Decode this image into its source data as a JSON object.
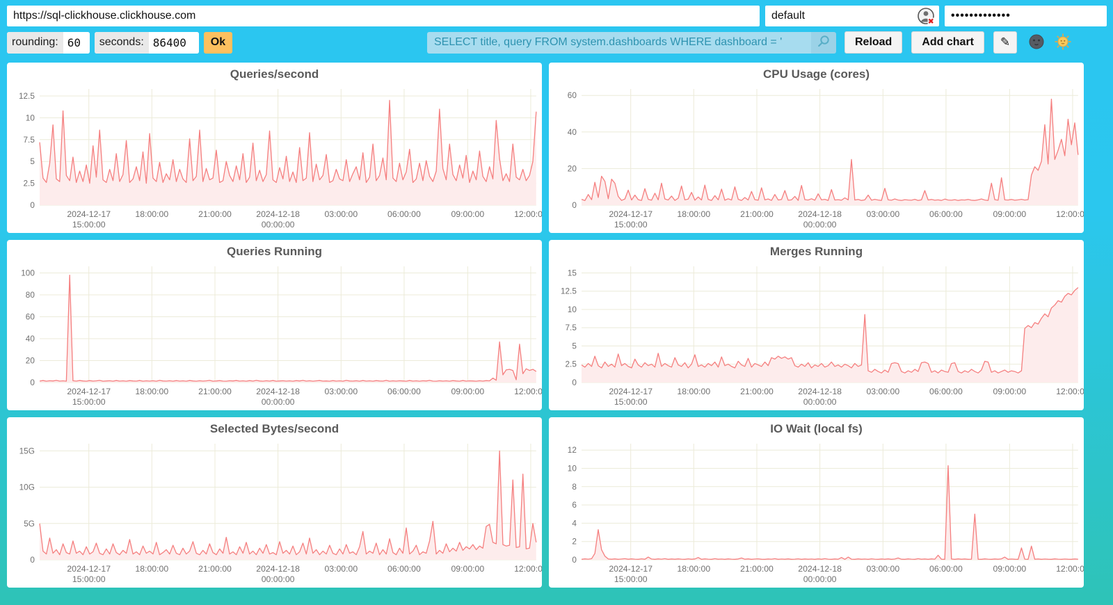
{
  "browser": {
    "url": "https://sql-clickhouse.clickhouse.com",
    "user": "default",
    "password_mask": "•••••••••••••"
  },
  "toolbar": {
    "rounding_label": "rounding:",
    "rounding_value": "60",
    "seconds_label": "seconds:",
    "seconds_value": "86400",
    "ok_label": "Ok",
    "query": "SELECT title, query FROM system.dashboards WHERE dashboard = '",
    "reload_label": "Reload",
    "add_chart_label": "Add chart",
    "edit_icon": "✎"
  },
  "colors": {
    "line": "#f58080",
    "area": "#fdecec",
    "grid": "#ecebd9",
    "axis_text": "#707070",
    "accent_cyan": "#2bc6f1",
    "accent_teal": "#2ec3b7",
    "ok_orange": "#fdc05f"
  },
  "chart_data": {
    "type": "line",
    "x_axis": {
      "ticks": [
        {
          "f": 0.099,
          "l1": "2024-12-17",
          "l2": "15:00:00"
        },
        {
          "f": 0.226,
          "l1": "18:00:00",
          "l2": ""
        },
        {
          "f": 0.353,
          "l1": "21:00:00",
          "l2": ""
        },
        {
          "f": 0.48,
          "l1": "2024-12-18",
          "l2": "00:00:00"
        },
        {
          "f": 0.607,
          "l1": "03:00:00",
          "l2": ""
        },
        {
          "f": 0.734,
          "l1": "06:00:00",
          "l2": ""
        },
        {
          "f": 0.862,
          "l1": "09:00:00",
          "l2": ""
        },
        {
          "f": 0.989,
          "l1": "12:00:00",
          "l2": ""
        }
      ]
    },
    "charts": [
      {
        "title": "Queries/second",
        "y_max": 13.3,
        "y_ticks": [
          {
            "v": 0,
            "label": "0"
          },
          {
            "v": 2.5,
            "label": "2.5"
          },
          {
            "v": 5,
            "label": "5"
          },
          {
            "v": 7.5,
            "label": "7.5"
          },
          {
            "v": 10,
            "label": "10"
          },
          {
            "v": 12.5,
            "label": "12.5"
          }
        ],
        "values": [
          7.2,
          3.1,
          2.6,
          4.8,
          9.2,
          3.0,
          2.7,
          10.8,
          3.4,
          2.8,
          5.5,
          2.6,
          3.9,
          2.7,
          4.6,
          2.5,
          6.8,
          3.2,
          8.6,
          2.9,
          2.6,
          4.1,
          2.8,
          5.9,
          2.7,
          3.5,
          7.4,
          2.6,
          3.0,
          4.4,
          2.8,
          6.1,
          2.5,
          8.2,
          3.1,
          2.7,
          4.9,
          2.6,
          3.6,
          2.9,
          5.2,
          2.7,
          4.1,
          3.0,
          2.6,
          7.6,
          2.8,
          3.3,
          8.6,
          2.7,
          4.2,
          2.9,
          3.1,
          6.3,
          2.6,
          2.8,
          5.0,
          3.4,
          2.7,
          4.5,
          2.9,
          5.9,
          2.6,
          3.2,
          7.1,
          2.8,
          4.0,
          2.7,
          3.5,
          8.5,
          2.9,
          2.6,
          4.3,
          3.0,
          5.6,
          2.7,
          3.8,
          2.6,
          6.6,
          2.8,
          3.1,
          8.3,
          2.7,
          4.7,
          2.9,
          3.4,
          5.8,
          2.6,
          2.8,
          4.1,
          3.0,
          2.8,
          5.2,
          2.7,
          3.6,
          4.4,
          2.9,
          6.0,
          2.6,
          3.2,
          7.0,
          2.8,
          3.4,
          5.4,
          2.9,
          12.0,
          3.1,
          2.7,
          4.8,
          2.9,
          3.8,
          6.4,
          2.6,
          3.0,
          4.8,
          2.8,
          5.1,
          3.3,
          2.7,
          3.9,
          11.0,
          4.2,
          2.9,
          7.0,
          3.5,
          2.8,
          4.6,
          3.1,
          5.7,
          2.6,
          3.9,
          2.9,
          6.2,
          3.3,
          2.7,
          4.4,
          3.0,
          9.7,
          5.3,
          2.8,
          3.6,
          2.7,
          7.0,
          3.2,
          2.9,
          4.1,
          2.8,
          3.4,
          5.0,
          10.7
        ]
      },
      {
        "title": "CPU Usage (cores)",
        "y_max": 63.5,
        "y_ticks": [
          {
            "v": 0,
            "label": "0"
          },
          {
            "v": 20,
            "label": "20"
          },
          {
            "v": 40,
            "label": "40"
          },
          {
            "v": 60,
            "label": "60"
          }
        ],
        "values": [
          3.2,
          2.5,
          5.8,
          3.0,
          12.5,
          4.2,
          15.8,
          13.0,
          3.5,
          14.2,
          12.0,
          4.8,
          2.6,
          3.4,
          8.2,
          2.8,
          5.5,
          3.0,
          2.6,
          9.0,
          3.2,
          2.7,
          6.5,
          2.9,
          12.0,
          3.4,
          2.8,
          5.0,
          2.6,
          3.8,
          10.5,
          2.9,
          3.3,
          7.0,
          2.7,
          4.5,
          2.8,
          11.0,
          3.1,
          2.6,
          5.2,
          2.9,
          8.8,
          2.7,
          3.5,
          2.8,
          10.0,
          3.2,
          2.6,
          4.2,
          2.8,
          7.5,
          3.0,
          2.7,
          9.5,
          2.9,
          3.4,
          2.6,
          5.8,
          2.8,
          3.1,
          8.0,
          2.7,
          2.9,
          4.8,
          2.6,
          10.8,
          3.0,
          2.8,
          3.5,
          2.7,
          6.2,
          2.9,
          3.2,
          2.6,
          8.5,
          2.8,
          3.0,
          2.7,
          4.0,
          2.9,
          25.0,
          2.8,
          3.1,
          2.6,
          2.9,
          5.5,
          2.7,
          3.2,
          2.8,
          2.6,
          9.2,
          2.9,
          2.7,
          3.4,
          2.8,
          2.6,
          3.0,
          2.8,
          2.7,
          3.2,
          2.6,
          2.9,
          8.0,
          2.8,
          3.1,
          2.7,
          2.9,
          2.6,
          3.3,
          2.8,
          2.7,
          3.0,
          2.6,
          2.9,
          2.8,
          3.1,
          2.7,
          2.6,
          2.9,
          3.4,
          2.8,
          2.6,
          12.0,
          3.0,
          2.7,
          15.0,
          2.9,
          2.8,
          3.1,
          2.7,
          2.9,
          3.2,
          2.8,
          3.0,
          16.5,
          21.0,
          19.0,
          24.0,
          44.0,
          22.5,
          58.0,
          25.0,
          30.0,
          36.0,
          27.0,
          47.0,
          33.0,
          45.0,
          27.5
        ]
      },
      {
        "title": "Queries Running",
        "y_max": 106,
        "y_ticks": [
          {
            "v": 0,
            "label": "0"
          },
          {
            "v": 20,
            "label": "20"
          },
          {
            "v": 40,
            "label": "40"
          },
          {
            "v": 60,
            "label": "60"
          },
          {
            "v": 80,
            "label": "80"
          },
          {
            "v": 100,
            "label": "100"
          }
        ],
        "values": [
          1.3,
          1.8,
          1.2,
          1.6,
          1.4,
          1.9,
          1.3,
          1.5,
          1.2,
          98,
          1.6,
          1.3,
          1.8,
          1.4,
          1.2,
          1.7,
          1.3,
          1.5,
          1.9,
          1.2,
          1.4,
          1.6,
          1.2,
          1.8,
          1.3,
          1.5,
          1.2,
          1.7,
          1.4,
          1.3,
          1.8,
          1.2,
          1.5,
          1.3,
          1.6,
          1.2,
          1.9,
          1.4,
          1.3,
          1.6,
          1.2,
          1.7,
          1.3,
          1.5,
          1.2,
          1.8,
          1.4,
          1.2,
          1.6,
          1.3,
          1.5,
          1.9,
          1.2,
          1.4,
          1.7,
          1.3,
          1.2,
          1.6,
          1.4,
          1.8,
          1.3,
          1.5,
          1.2,
          1.7,
          1.3,
          1.9,
          1.4,
          1.2,
          1.6,
          1.3,
          1.8,
          1.2,
          1.4,
          1.6,
          1.3,
          1.5,
          1.2,
          1.7,
          1.4,
          1.9,
          1.3,
          1.6,
          1.2,
          1.5,
          1.8,
          1.3,
          1.4,
          1.2,
          1.7,
          1.3,
          1.5,
          1.2,
          1.9,
          1.4,
          1.3,
          1.6,
          1.2,
          1.8,
          1.3,
          1.5,
          1.2,
          1.7,
          1.4,
          1.3,
          1.9,
          1.2,
          1.5,
          1.3,
          1.6,
          1.4,
          1.2,
          1.8,
          1.3,
          1.5,
          1.2,
          1.6,
          1.4,
          1.9,
          1.3,
          1.2,
          1.6,
          1.3,
          1.5,
          1.2,
          1.7,
          1.4,
          1.2,
          1.8,
          1.3,
          1.5,
          1.4,
          1.2,
          1.6,
          1.3,
          1.7,
          1.5,
          4.0,
          2.0,
          37,
          7.0,
          11.5,
          12.0,
          11.0,
          2.5,
          35,
          8.0,
          12.5,
          11.0,
          12.0,
          10.0
        ]
      },
      {
        "title": "Merges Running",
        "y_max": 15.9,
        "y_ticks": [
          {
            "v": 0,
            "label": "0"
          },
          {
            "v": 2.5,
            "label": "2.5"
          },
          {
            "v": 5,
            "label": "5"
          },
          {
            "v": 7.5,
            "label": "7.5"
          },
          {
            "v": 10,
            "label": "10"
          },
          {
            "v": 12.5,
            "label": "12.5"
          },
          {
            "v": 15,
            "label": "15"
          }
        ],
        "values": [
          2.4,
          2.1,
          2.6,
          2.2,
          3.6,
          2.3,
          2.0,
          2.8,
          2.2,
          2.5,
          2.1,
          3.9,
          2.3,
          2.6,
          2.2,
          2.0,
          3.2,
          2.4,
          2.1,
          2.7,
          2.3,
          2.5,
          2.1,
          4.0,
          2.2,
          2.6,
          2.3,
          2.1,
          3.4,
          2.4,
          2.2,
          2.7,
          2.0,
          2.5,
          3.8,
          2.2,
          2.4,
          2.1,
          2.6,
          2.3,
          2.8,
          2.1,
          3.5,
          2.3,
          2.5,
          2.2,
          2.0,
          2.9,
          2.4,
          2.2,
          3.3,
          2.1,
          2.6,
          2.4,
          2.2,
          2.8,
          2.3,
          3.4,
          3.2,
          3.6,
          3.3,
          3.5,
          3.2,
          3.4,
          2.3,
          2.1,
          2.5,
          2.2,
          2.7,
          2.0,
          2.4,
          2.2,
          2.6,
          2.1,
          2.3,
          2.8,
          2.2,
          2.4,
          2.1,
          2.5,
          2.3,
          2.0,
          2.6,
          2.2,
          2.4,
          9.3,
          1.6,
          1.4,
          1.8,
          1.5,
          1.3,
          1.7,
          1.4,
          2.6,
          2.7,
          2.6,
          1.5,
          1.3,
          1.6,
          1.4,
          1.8,
          1.5,
          2.7,
          2.8,
          2.6,
          1.4,
          1.6,
          1.3,
          1.7,
          1.5,
          1.4,
          2.6,
          2.7,
          1.5,
          1.3,
          1.6,
          1.4,
          1.8,
          1.5,
          1.3,
          1.7,
          2.9,
          2.8,
          1.4,
          1.6,
          1.3,
          1.5,
          1.7,
          1.4,
          1.6,
          1.5,
          1.3,
          1.6,
          7.4,
          7.8,
          7.5,
          8.2,
          8.0,
          8.8,
          9.4,
          9.0,
          10.2,
          10.6,
          11.2,
          11.0,
          11.8,
          12.2,
          12.0,
          12.6,
          13.0
        ]
      },
      {
        "title": "Selected Bytes/second",
        "y_max": 16,
        "y_unit": "G",
        "y_ticks": [
          {
            "v": 0,
            "label": "0"
          },
          {
            "v": 5,
            "label": "5G"
          },
          {
            "v": 10,
            "label": "10G"
          },
          {
            "v": 15,
            "label": "15G"
          }
        ],
        "values": [
          5.0,
          1.2,
          0.8,
          3.0,
          0.9,
          1.4,
          0.7,
          2.2,
          1.0,
          0.8,
          2.6,
          0.9,
          1.2,
          0.7,
          1.8,
          0.8,
          1.1,
          2.3,
          0.9,
          0.7,
          1.5,
          0.8,
          2.2,
          1.0,
          0.7,
          1.3,
          0.9,
          2.8,
          0.8,
          1.1,
          0.7,
          1.9,
          0.9,
          1.2,
          0.8,
          2.4,
          0.7,
          1.0,
          1.4,
          0.8,
          2.0,
          0.9,
          0.7,
          1.6,
          0.8,
          1.2,
          2.5,
          0.9,
          0.7,
          1.3,
          0.8,
          2.2,
          1.0,
          0.7,
          1.5,
          0.9,
          3.1,
          0.8,
          1.1,
          0.7,
          1.8,
          0.9,
          2.4,
          0.8,
          1.2,
          0.7,
          1.6,
          0.9,
          2.1,
          0.8,
          1.0,
          0.7,
          2.5,
          0.9,
          1.3,
          0.8,
          1.9,
          0.7,
          1.1,
          2.3,
          0.8,
          3.0,
          0.9,
          1.4,
          0.7,
          1.2,
          0.8,
          2.0,
          0.9,
          0.7,
          1.5,
          0.8,
          2.1,
          0.9,
          1.1,
          0.7,
          1.8,
          3.9,
          0.8,
          1.2,
          0.9,
          2.3,
          0.7,
          1.4,
          0.8,
          2.9,
          1.0,
          0.7,
          1.6,
          0.9,
          4.4,
          0.8,
          1.2,
          2.0,
          0.7,
          1.1,
          0.9,
          2.6,
          5.3,
          0.8,
          1.3,
          0.9,
          2.2,
          1.1,
          1.6,
          1.2,
          2.4,
          1.3,
          1.8,
          1.5,
          2.1,
          1.4,
          1.9,
          1.6,
          4.6,
          4.9,
          2.4,
          2.2,
          15.0,
          2.1,
          1.9,
          2.0,
          11.0,
          1.7,
          1.8,
          11.8,
          1.5,
          1.6,
          5.0,
          2.4
        ]
      },
      {
        "title": "IO Wait (local fs)",
        "y_max": 12.7,
        "y_ticks": [
          {
            "v": 0,
            "label": "0"
          },
          {
            "v": 2,
            "label": "2"
          },
          {
            "v": 4,
            "label": "4"
          },
          {
            "v": 6,
            "label": "6"
          },
          {
            "v": 8,
            "label": "8"
          },
          {
            "v": 10,
            "label": "10"
          },
          {
            "v": 12,
            "label": "12"
          }
        ],
        "values": [
          0.05,
          0.1,
          0.07,
          0.12,
          0.7,
          3.3,
          1.1,
          0.4,
          0.09,
          0.06,
          0.1,
          0.05,
          0.08,
          0.12,
          0.06,
          0.1,
          0.07,
          0.05,
          0.11,
          0.06,
          0.3,
          0.08,
          0.05,
          0.1,
          0.07,
          0.12,
          0.05,
          0.09,
          0.06,
          0.1,
          0.07,
          0.05,
          0.11,
          0.06,
          0.09,
          0.25,
          0.05,
          0.1,
          0.07,
          0.05,
          0.12,
          0.06,
          0.08,
          0.05,
          0.1,
          0.07,
          0.05,
          0.09,
          0.2,
          0.06,
          0.1,
          0.05,
          0.08,
          0.11,
          0.06,
          0.05,
          0.09,
          0.07,
          0.12,
          0.05,
          0.08,
          0.06,
          0.1,
          0.05,
          0.07,
          0.11,
          0.05,
          0.09,
          0.06,
          0.08,
          0.05,
          0.1,
          0.06,
          0.12,
          0.07,
          0.05,
          0.09,
          0.06,
          0.25,
          0.05,
          0.3,
          0.07,
          0.05,
          0.1,
          0.06,
          0.08,
          0.05,
          0.11,
          0.07,
          0.05,
          0.09,
          0.06,
          0.1,
          0.05,
          0.08,
          0.2,
          0.06,
          0.05,
          0.1,
          0.07,
          0.05,
          0.12,
          0.06,
          0.09,
          0.05,
          0.1,
          0.07,
          0.5,
          0.06,
          0.05,
          10.3,
          0.08,
          0.05,
          0.1,
          0.06,
          0.09,
          0.05,
          0.07,
          5.0,
          0.06,
          0.05,
          0.1,
          0.07,
          0.05,
          0.09,
          0.06,
          0.11,
          0.3,
          0.05,
          0.08,
          0.06,
          0.05,
          1.3,
          0.07,
          0.05,
          1.5,
          0.06,
          0.09,
          0.05,
          0.08,
          0.06,
          0.05,
          0.1,
          0.07,
          0.05,
          0.08,
          0.06,
          0.05,
          0.09,
          0.06
        ]
      }
    ]
  }
}
